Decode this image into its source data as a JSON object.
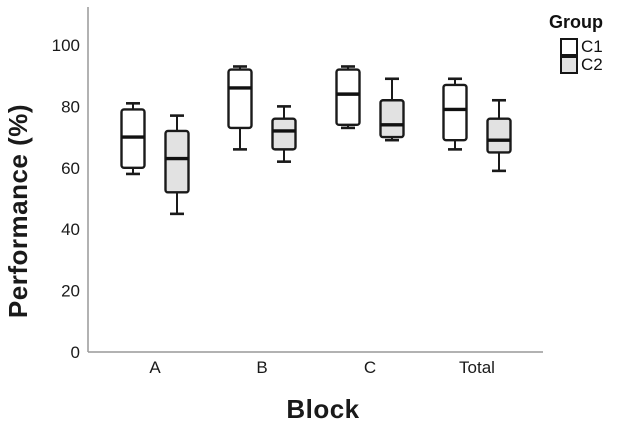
{
  "chart_data": {
    "type": "boxplot",
    "title": "",
    "xlabel": "Block",
    "ylabel": "Performance (%)",
    "categories": [
      "A",
      "B",
      "C",
      "Total"
    ],
    "y_ticks": [
      0,
      20,
      40,
      60,
      80,
      100
    ],
    "ylim": [
      0,
      112
    ],
    "grid": false,
    "legend": {
      "title": "Group",
      "position": "top-right",
      "entries": [
        {
          "label": "C1",
          "fill": "#ffffff"
        },
        {
          "label": "C2",
          "fill": "#e2e2e2"
        }
      ]
    },
    "series": [
      {
        "name": "C1",
        "fill": "#ffffff",
        "boxes": [
          {
            "category": "A",
            "min": 58,
            "q1": 60,
            "median": 70,
            "q3": 79,
            "max": 81
          },
          {
            "category": "B",
            "min": 66,
            "q1": 73,
            "median": 86,
            "q3": 92,
            "max": 93
          },
          {
            "category": "C",
            "min": 73,
            "q1": 74,
            "median": 84,
            "q3": 92,
            "max": 93
          },
          {
            "category": "Total",
            "min": 66,
            "q1": 69,
            "median": 79,
            "q3": 87,
            "max": 89
          }
        ]
      },
      {
        "name": "C2",
        "fill": "#e2e2e2",
        "boxes": [
          {
            "category": "A",
            "min": 45,
            "q1": 52,
            "median": 63,
            "q3": 72,
            "max": 77
          },
          {
            "category": "B",
            "min": 62,
            "q1": 66,
            "median": 72,
            "q3": 76,
            "max": 80
          },
          {
            "category": "C",
            "min": 69,
            "q1": 70,
            "median": 74,
            "q3": 82,
            "max": 89
          },
          {
            "category": "Total",
            "min": 59,
            "q1": 65,
            "median": 69,
            "q3": 76,
            "max": 82
          }
        ]
      }
    ],
    "colors": {
      "axis_line": "#999999",
      "box_stroke": "#1a1a1a",
      "median": "#111111",
      "text": "#1a1a1a",
      "background": "#ffffff"
    }
  }
}
